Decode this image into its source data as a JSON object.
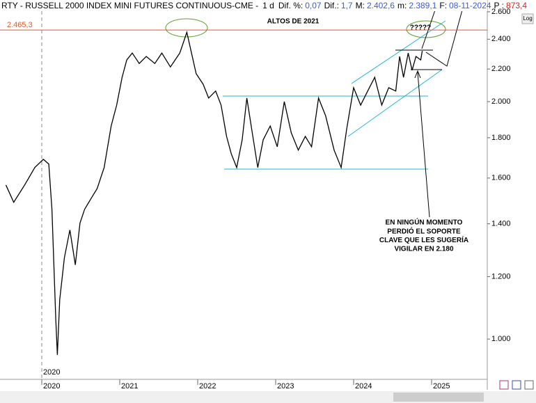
{
  "chart_data": {
    "type": "line",
    "header": {
      "symbol": "RTY - RUSSELL 2000 INDEX MINI FUTURES CONTINUOUS-CME -",
      "period": "1 d",
      "items": [
        {
          "label": "Dif. %:",
          "value": "0,07"
        },
        {
          "label": "Dif.:",
          "value": "1,7"
        },
        {
          "label": "M:",
          "value": "2.402,6"
        },
        {
          "label": "m:",
          "value": "2.389,1"
        },
        {
          "label": "F:",
          "value": "08-11-2024"
        },
        {
          "label": "P :",
          "value": "873,4"
        }
      ]
    },
    "log_button": "Log",
    "session_label": "2020",
    "reference_line": {
      "value": 2465.3,
      "label": "2.465,3",
      "color": "#e0582a"
    },
    "annotations": {
      "highs": "ALTOS DE 2021",
      "question": "?????",
      "note": [
        "EN NINGÚN MOMENTO",
        "PERDIÓ EL SOPORTE",
        "CLAVE QUE LES SUGERÍA",
        "VIGILAR EN 2.180"
      ]
    },
    "color": "#000000",
    "log_scale": true,
    "grid": false,
    "x": [
      2019.54,
      2019.64,
      2019.78,
      2019.91,
      2020.02,
      2020.09,
      2020.13,
      2020.18,
      2020.2,
      2020.23,
      2020.29,
      2020.36,
      2020.43,
      2020.49,
      2020.55,
      2020.63,
      2020.71,
      2020.8,
      2020.89,
      2020.96,
      2021.03,
      2021.09,
      2021.16,
      2021.25,
      2021.34,
      2021.45,
      2021.54,
      2021.65,
      2021.77,
      2021.86,
      2021.92,
      2021.98,
      2022.07,
      2022.14,
      2022.23,
      2022.3,
      2022.37,
      2022.43,
      2022.5,
      2022.57,
      2022.63,
      2022.7,
      2022.77,
      2022.84,
      2022.93,
      2023.02,
      2023.11,
      2023.2,
      2023.29,
      2023.38,
      2023.46,
      2023.55,
      2023.64,
      2023.75,
      2023.84,
      2023.91,
      2024.0,
      2024.09,
      2024.18,
      2024.27,
      2024.36,
      2024.45,
      2024.54,
      2024.59,
      2024.64,
      2024.7,
      2024.75,
      2024.8,
      2024.86,
      2024.88
    ],
    "values": [
      1568,
      1491,
      1568,
      1650,
      1690,
      1667,
      1461,
      1056,
      955,
      1122,
      1268,
      1375,
      1242,
      1403,
      1461,
      1506,
      1552,
      1650,
      1863,
      1980,
      2147,
      2259,
      2305,
      2236,
      2282,
      2236,
      2305,
      2213,
      2305,
      2449,
      2305,
      2170,
      2104,
      2021,
      2063,
      1980,
      1807,
      1718,
      1650,
      1789,
      2021,
      1826,
      1650,
      1789,
      1863,
      1753,
      2000,
      1826,
      1736,
      1807,
      1753,
      2021,
      1920,
      1736,
      1650,
      1845,
      2083,
      1980,
      2063,
      2147,
      1980,
      2083,
      2063,
      2282,
      2147,
      2305,
      2192,
      2282,
      2259,
      2319
    ],
    "xlim": [
      2019.464,
      2025.714
    ],
    "xticks": [
      2020,
      2021,
      2022,
      2023,
      2024,
      2025
    ],
    "ylim": [
      889,
      2605
    ],
    "yticks": [
      {
        "value": 1000,
        "label": "1.000"
      },
      {
        "value": 1200,
        "label": "1.200"
      },
      {
        "value": 1400,
        "label": "1.400"
      },
      {
        "value": 1600,
        "label": "1.600"
      },
      {
        "value": 1800,
        "label": "1.800"
      },
      {
        "value": 2000,
        "label": "2.000"
      },
      {
        "value": 2200,
        "label": "2.200"
      },
      {
        "value": 2400,
        "label": "2.400"
      },
      {
        "value": 2600,
        "label": "2.600"
      }
    ]
  }
}
